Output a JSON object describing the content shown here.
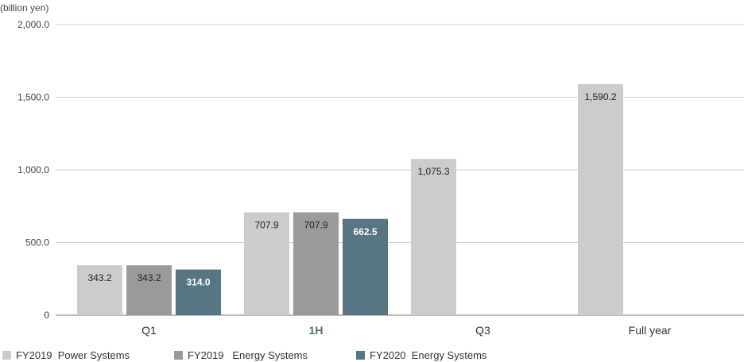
{
  "chart_data": {
    "type": "bar",
    "unit_label": "(billion yen)",
    "categories": [
      "Q1",
      "1H",
      "Q3",
      "Full year"
    ],
    "highlight_category": "1H",
    "series": [
      {
        "name": "FY2019  Power Systems",
        "color": "#cccccc",
        "values": [
          343.2,
          707.9,
          1075.3,
          1590.2
        ],
        "labels": [
          "343.2",
          "707.9",
          "1,075.3",
          "1,590.2"
        ]
      },
      {
        "name": "FY2019   Energy Systems",
        "color": "#9a9a9a",
        "values": [
          343.2,
          707.9,
          null,
          null
        ],
        "labels": [
          "343.2",
          "707.9",
          "",
          ""
        ]
      },
      {
        "name": "FY2020  Energy Systems",
        "color": "#587682",
        "values": [
          314.0,
          662.5,
          null,
          null
        ],
        "labels": [
          "314.0",
          "662.5",
          "",
          ""
        ]
      }
    ],
    "yticks": [
      0,
      500,
      1000,
      1500,
      2000
    ],
    "ytick_labels": [
      "0",
      "500.0",
      "1,000.0",
      "1,500.0",
      "2,000.0"
    ],
    "ylim": [
      0,
      2000
    ],
    "grid": true,
    "legend": "bottom-left"
  }
}
